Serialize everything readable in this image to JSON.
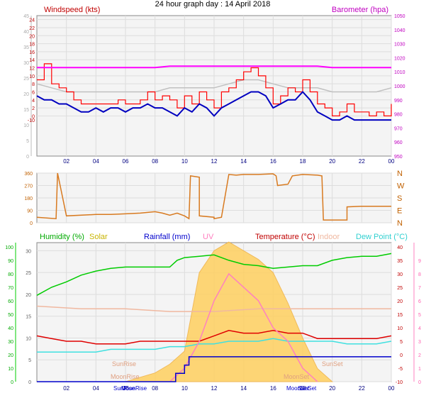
{
  "title": "24 hour graph day : 14 April 2018",
  "colors": {
    "wind_avg": "#0000c0",
    "wind_gust": "#ff0000",
    "wind_avg_gray": "#c0c0c0",
    "barometer": "#ff00ff",
    "direction": "#d87a20",
    "humidity": "#00cc00",
    "solar": "#ffd060",
    "rainfall": "#0000cc",
    "uv": "#ff80c0",
    "temperature": "#e00000",
    "indoor": "#f0b8a0",
    "dewpoint": "#40e0e0",
    "feels_like": "#b0b0f0"
  },
  "chart_data": [
    {
      "type": "line",
      "title": "",
      "ylabel": "Windspeed (kts)",
      "y2label": "Barometer (hpa)",
      "x_ticks": [
        "02",
        "04",
        "06",
        "08",
        "10",
        "12",
        "14",
        "16",
        "18",
        "20",
        "22",
        "00"
      ],
      "y_left_outer_ticks": [
        "0",
        "5",
        "10",
        "15",
        "20",
        "25",
        "30",
        "35",
        "40",
        "45"
      ],
      "y_left_ticks": [
        "0",
        "2",
        "4",
        "6",
        "8",
        "10",
        "12",
        "14",
        "16",
        "18",
        "20",
        "22",
        "24"
      ],
      "y_left_tick_neg": "-10",
      "y_right_ticks": [
        "950",
        "960",
        "970",
        "980",
        "990",
        "1000",
        "1010",
        "1020",
        "1030",
        "1040",
        "1050"
      ],
      "ylim": [
        -10,
        25
      ],
      "y2lim": [
        950,
        1050
      ],
      "series": [
        {
          "name": "Barometer (hpa)",
          "axis": "right",
          "x": [
            0,
            1,
            2,
            3,
            4,
            5,
            6,
            7,
            8,
            9,
            10,
            11,
            12,
            13,
            14,
            15,
            16,
            17,
            18,
            19,
            20,
            21,
            22,
            23,
            24
          ],
          "values": [
            1013,
            1013,
            1013,
            1013,
            1013,
            1013,
            1013,
            1013,
            1013,
            1014,
            1014,
            1014,
            1014,
            1014,
            1014,
            1014,
            1014,
            1014,
            1014,
            1014,
            1013,
            1013,
            1013,
            1013,
            1013
          ]
        },
        {
          "name": "Gust",
          "axis": "left",
          "x": [
            0,
            0.5,
            1,
            1.5,
            2,
            2.5,
            3,
            3.5,
            4,
            4.5,
            5,
            5.5,
            6,
            6.5,
            7,
            7.5,
            8,
            8.5,
            9,
            9.5,
            10,
            10.5,
            11,
            11.5,
            12,
            12.5,
            13,
            13.5,
            14,
            14.5,
            15,
            15.5,
            16,
            16.5,
            17,
            17.5,
            18,
            18.5,
            19,
            19.5,
            20,
            20.5,
            21,
            21.5,
            22,
            22.5,
            23,
            23.5,
            24
          ],
          "values": [
            9,
            13,
            8,
            7,
            6,
            4,
            3,
            3,
            3,
            3,
            3,
            4,
            3,
            3,
            4,
            6,
            4,
            5,
            4,
            2,
            5,
            3,
            6,
            4,
            2,
            6,
            7,
            9,
            11,
            12,
            10,
            7,
            3,
            5,
            7,
            6,
            9,
            6,
            3,
            2,
            0,
            1,
            3,
            1,
            1,
            0,
            1,
            0,
            3
          ]
        },
        {
          "name": "Average",
          "axis": "left",
          "x": [
            0,
            0.5,
            1,
            1.5,
            2,
            2.5,
            3,
            3.5,
            4,
            4.5,
            5,
            5.5,
            6,
            6.5,
            7,
            7.5,
            8,
            8.5,
            9,
            9.5,
            10,
            10.5,
            11,
            11.5,
            12,
            12.5,
            13,
            13.5,
            14,
            14.5,
            15,
            15.5,
            16,
            16.5,
            17,
            17.5,
            18,
            18.5,
            19,
            19.5,
            20,
            20.5,
            21,
            21.5,
            22,
            22.5,
            23,
            23.5,
            24
          ],
          "values": [
            5,
            4,
            4,
            3,
            3,
            2,
            1,
            1,
            2,
            1,
            2,
            2,
            1,
            2,
            2,
            3,
            2,
            2,
            1,
            0,
            2,
            1,
            3,
            2,
            0,
            2,
            3,
            4,
            5,
            6,
            6,
            5,
            2,
            3,
            4,
            4,
            6,
            4,
            1,
            0,
            -1,
            -1,
            0,
            -1,
            -1,
            -1,
            -1,
            -1,
            -1
          ]
        },
        {
          "name": "Avg (gray)",
          "axis": "left",
          "x": [
            0,
            1,
            2,
            3,
            4,
            5,
            6,
            7,
            8,
            9,
            10,
            11,
            12,
            13,
            14,
            15,
            16,
            17,
            18,
            19,
            20,
            21,
            22,
            23,
            24
          ],
          "values": [
            8,
            7,
            6,
            6,
            6,
            6,
            6,
            6,
            6,
            7,
            7,
            7,
            7,
            8,
            9,
            9,
            8,
            7,
            7,
            7,
            6,
            6,
            6,
            6,
            7
          ]
        }
      ]
    },
    {
      "type": "line",
      "title": "",
      "y_ticks": [
        "0",
        "90",
        "180",
        "270",
        "360"
      ],
      "y_right_labels": [
        "N",
        "W",
        "S",
        "E",
        "N"
      ],
      "ylim": [
        0,
        360
      ],
      "series": [
        {
          "name": "Direction",
          "x": [
            0,
            1.3,
            1.4,
            2,
            4,
            5,
            6,
            7,
            8,
            8.5,
            9,
            9.5,
            10,
            10.3,
            10.4,
            11,
            11,
            12,
            12,
            12.5,
            13,
            13.5,
            14,
            15,
            16,
            16.2,
            16.3,
            17,
            17.3,
            18,
            19,
            19.3,
            19.4,
            20,
            21,
            21,
            22,
            24
          ],
          "values": [
            40,
            30,
            360,
            50,
            60,
            60,
            65,
            70,
            80,
            70,
            55,
            70,
            50,
            30,
            340,
            330,
            50,
            40,
            30,
            40,
            350,
            345,
            350,
            350,
            355,
            340,
            270,
            280,
            340,
            350,
            345,
            340,
            20,
            20,
            20,
            115,
            120,
            120
          ]
        }
      ]
    },
    {
      "type": "line",
      "title": "",
      "legend": [
        "Humidity (%)",
        "Solar",
        "Rainfall (mm)",
        "UV",
        "Temperature (°C)",
        "Indoor",
        "Dew Point (°C)"
      ],
      "y_humidity_ticks": [
        "0",
        "10",
        "20",
        "30",
        "40",
        "50",
        "60",
        "70",
        "80",
        "90",
        "100"
      ],
      "y_left_ticks": [
        "0",
        "5",
        "10",
        "15",
        "20",
        "25",
        "30"
      ],
      "y_right_temp_ticks": [
        "-10",
        "-5",
        "0",
        "5",
        "10",
        "15",
        "20",
        "25",
        "30",
        "35",
        "40"
      ],
      "y_uv_ticks": [
        "0",
        "1",
        "2",
        "3",
        "4",
        "5",
        "6",
        "7",
        "8",
        "9"
      ],
      "x_ticks": [
        "02",
        "04",
        "06",
        "08",
        "10",
        "12",
        "14",
        "16",
        "18",
        "20",
        "22",
        "00"
      ],
      "annotations": [
        "SunRise",
        "MoonRise",
        "MoonSet",
        "SunSet"
      ],
      "series": [
        {
          "name": "Humidity (%)",
          "x": [
            0,
            1,
            2,
            3,
            4,
            5,
            6,
            7,
            8,
            9,
            9.5,
            10,
            11,
            12,
            13,
            14,
            15,
            16,
            17,
            18,
            19,
            20,
            21,
            22,
            23,
            24
          ],
          "values": [
            64,
            70,
            74,
            79,
            82,
            84,
            85,
            85,
            85,
            85,
            90,
            92,
            93,
            94,
            90,
            87,
            86,
            84,
            85,
            86,
            86,
            90,
            92,
            93,
            93,
            95
          ]
        },
        {
          "name": "Temperature (°C)",
          "x": [
            0,
            1,
            2,
            3,
            4,
            5,
            6,
            7,
            8,
            9,
            10,
            11,
            12,
            13,
            14,
            15,
            16,
            17,
            18,
            19,
            20,
            21,
            22,
            23,
            24
          ],
          "values": [
            7,
            6,
            5,
            5,
            4,
            4,
            4,
            5,
            5,
            5,
            5,
            5,
            7,
            9,
            8,
            8,
            9,
            8,
            8,
            6,
            6,
            6,
            6,
            6,
            7
          ]
        },
        {
          "name": "Dew Point (°C)",
          "x": [
            0,
            1,
            2,
            3,
            4,
            5,
            6,
            7,
            8,
            9,
            10,
            11,
            12,
            13,
            14,
            15,
            16,
            17,
            18,
            19,
            20,
            21,
            22,
            23,
            24
          ],
          "values": [
            1,
            1,
            1,
            1,
            1,
            2,
            2,
            2,
            2,
            3,
            3,
            4,
            4,
            5,
            5,
            5,
            6,
            5,
            5,
            5,
            5,
            4,
            4,
            4,
            5
          ]
        },
        {
          "name": "Indoor",
          "x": [
            0,
            3,
            6,
            9,
            12,
            15,
            18,
            21,
            24
          ],
          "values": [
            18,
            17,
            17,
            16,
            16,
            17,
            17,
            17,
            17
          ]
        },
        {
          "name": "Rainfall (mm)",
          "x": [
            0,
            6,
            9,
            9.4,
            9.6,
            10,
            10.3,
            11,
            24
          ],
          "values": [
            0,
            0,
            0,
            1,
            1,
            2,
            3,
            3,
            3
          ]
        },
        {
          "name": "Solar",
          "x": [
            6,
            7,
            8,
            9,
            10,
            11,
            12,
            13,
            14,
            15,
            16,
            17,
            18,
            19,
            20
          ],
          "values": [
            0,
            1,
            2,
            4,
            7,
            25,
            30,
            32,
            30,
            28,
            25,
            18,
            10,
            3,
            0
          ]
        },
        {
          "name": "UV",
          "x": [
            9,
            10,
            11,
            12,
            13,
            14,
            15,
            16,
            17,
            18,
            19
          ],
          "values": [
            0,
            1,
            3,
            6,
            8,
            7,
            6,
            4,
            3,
            1,
            0
          ]
        }
      ]
    }
  ]
}
